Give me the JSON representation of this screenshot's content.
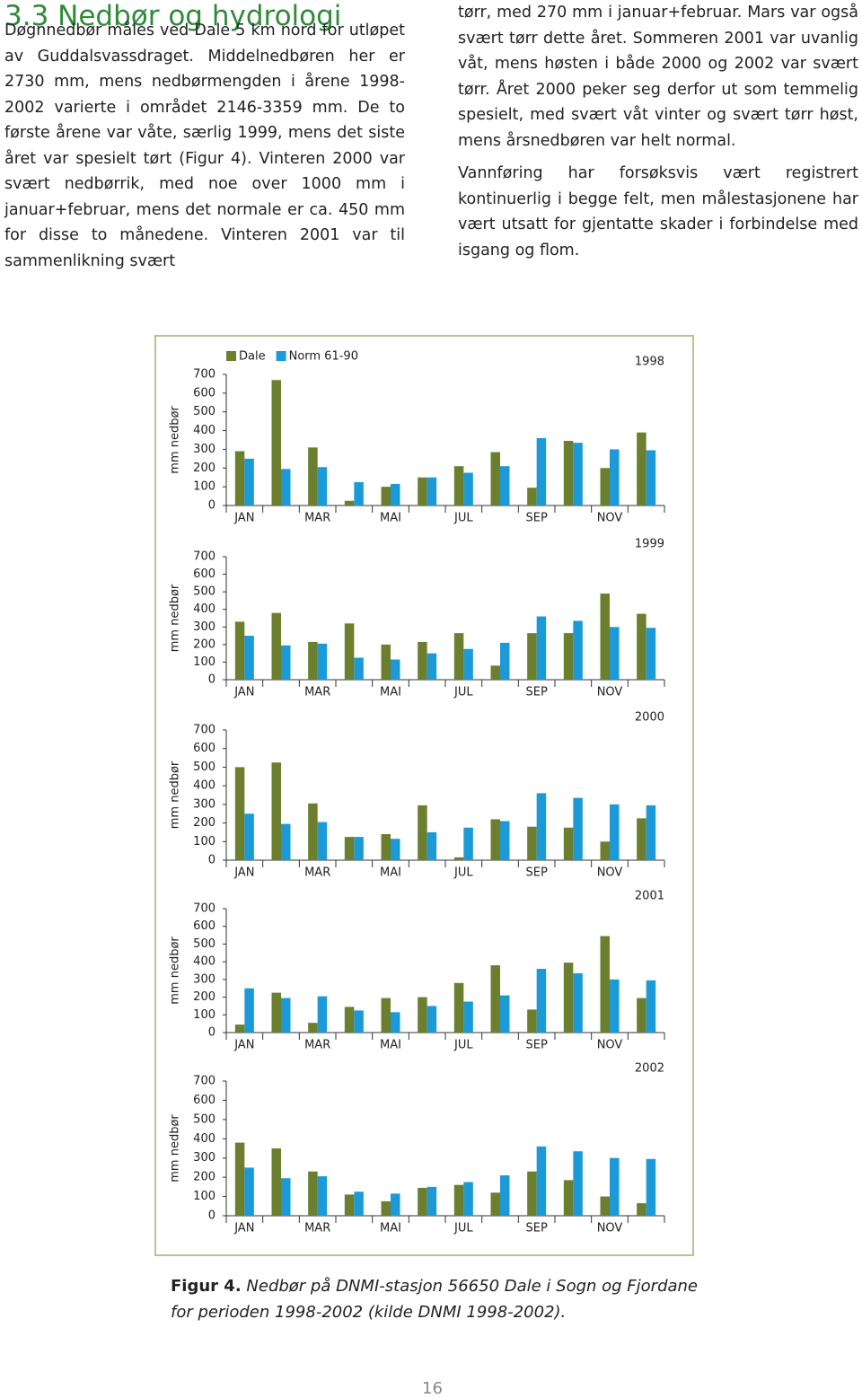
{
  "heading": "3.3 Nedbør og hydrologi",
  "left_paragraph": "Døgnnedbør måles ved Dale 5 km nord for utløpet av Guddalsvassdraget. Middelnedbøren her er 2730 mm, mens nedbørmengden i årene 1998-2002 varierte i området 2146-3359 mm. De to første årene var våte, særlig 1999, mens det siste året var spesielt tørt (Figur 4). Vinteren 2000 var svært nedbørrik, med noe over 1000 mm i januar+februar, mens det normale er ca. 450 mm for disse to månedene. Vinteren 2001 var til sammenlikning svært",
  "right_paragraphs": [
    "tørr, med 270 mm i januar+februar. Mars var også svært tørr dette året. Sommeren 2001 var uvanlig våt, mens høsten i både 2000 og 2002 var svært tørr. Året 2000 peker seg derfor ut som temmelig spesielt, med svært våt vinter og svært tørr høst, mens årsnedbøren var helt normal.",
    "Vannføring har forsøksvis vært registrert kontinuerlig i begge felt, men målestasjonene har vært utsatt for gjentatte skader i forbindelse med isgang og flom."
  ],
  "chart_data": [
    {
      "type": "bar",
      "title": "1998",
      "y_label": "mm nedbør",
      "categories": [
        "JAN",
        null,
        "MAR",
        null,
        "MAI",
        null,
        "JUL",
        null,
        "SEP",
        null,
        "NOV",
        null
      ],
      "series": [
        {
          "name": "Dale",
          "color": "#6b7f2e",
          "values": [
            290,
            670,
            310,
            25,
            100,
            150,
            210,
            285,
            95,
            345,
            200,
            390
          ]
        },
        {
          "name": "Norm 61-90",
          "color": "#1b9ad7",
          "values": [
            250,
            195,
            205,
            125,
            115,
            150,
            175,
            210,
            360,
            335,
            300,
            295
          ]
        }
      ],
      "ylim": [
        0,
        700
      ],
      "yticks": [
        0,
        100,
        200,
        300,
        400,
        500,
        600,
        700
      ],
      "grid": false
    },
    {
      "type": "bar",
      "title": "1999",
      "y_label": "mm nedbør",
      "categories": [
        "JAN",
        null,
        "MAR",
        null,
        "MAI",
        null,
        "JUL",
        null,
        "SEP",
        null,
        "NOV",
        null
      ],
      "series": [
        {
          "color": "#6b7f2e",
          "values": [
            330,
            380,
            215,
            320,
            200,
            215,
            265,
            80,
            265,
            265,
            490,
            375
          ]
        },
        {
          "color": "#1b9ad7",
          "values": [
            250,
            195,
            205,
            125,
            115,
            150,
            175,
            210,
            360,
            335,
            300,
            295
          ]
        }
      ],
      "ylim": [
        0,
        700
      ],
      "yticks": [
        0,
        100,
        200,
        300,
        400,
        500,
        600,
        700
      ],
      "grid": false
    },
    {
      "type": "bar",
      "title": "2000",
      "y_label": "mm nedbør",
      "categories": [
        "JAN",
        null,
        "MAR",
        null,
        "MAI",
        null,
        "JUL",
        null,
        "SEP",
        null,
        "NOV",
        null
      ],
      "series": [
        {
          "color": "#6b7f2e",
          "values": [
            500,
            525,
            305,
            125,
            140,
            295,
            15,
            220,
            180,
            175,
            100,
            225
          ]
        },
        {
          "color": "#1b9ad7",
          "values": [
            250,
            195,
            205,
            125,
            115,
            150,
            175,
            210,
            360,
            335,
            300,
            295
          ]
        }
      ],
      "ylim": [
        0,
        700
      ],
      "yticks": [
        0,
        100,
        200,
        300,
        400,
        500,
        600,
        700
      ],
      "grid": false
    },
    {
      "type": "bar",
      "title": "2001",
      "y_label": "mm nedbør",
      "categories": [
        "JAN",
        null,
        "MAR",
        null,
        "MAI",
        null,
        "JUL",
        null,
        "SEP",
        null,
        "NOV",
        null
      ],
      "series": [
        {
          "color": "#6b7f2e",
          "values": [
            45,
            225,
            55,
            145,
            195,
            200,
            280,
            380,
            130,
            395,
            545,
            195
          ]
        },
        {
          "color": "#1b9ad7",
          "values": [
            250,
            195,
            205,
            125,
            115,
            150,
            175,
            210,
            360,
            335,
            300,
            295
          ]
        }
      ],
      "ylim": [
        0,
        700
      ],
      "yticks": [
        0,
        100,
        200,
        300,
        400,
        500,
        600,
        700
      ],
      "grid": false
    },
    {
      "type": "bar",
      "title": "2002",
      "y_label": "mm nedbør",
      "categories": [
        "JAN",
        null,
        "MAR",
        null,
        "MAI",
        null,
        "JUL",
        null,
        "SEP",
        null,
        "NOV",
        null
      ],
      "series": [
        {
          "color": "#6b7f2e",
          "values": [
            380,
            350,
            230,
            110,
            75,
            145,
            160,
            120,
            230,
            185,
            100,
            65
          ]
        },
        {
          "color": "#1b9ad7",
          "values": [
            250,
            195,
            205,
            125,
            115,
            150,
            175,
            210,
            360,
            335,
            300,
            295
          ]
        }
      ],
      "ylim": [
        0,
        700
      ],
      "yticks": [
        0,
        100,
        200,
        300,
        400,
        500,
        600,
        700
      ],
      "grid": false
    }
  ],
  "caption": {
    "label": "Figur 4.",
    "text": "Nedbør på DNMI-stasjon 56650 Dale i Sogn og Fjordane for perioden 1998-2002 (kilde DNMI 1998-2002)."
  },
  "page_number": "16"
}
